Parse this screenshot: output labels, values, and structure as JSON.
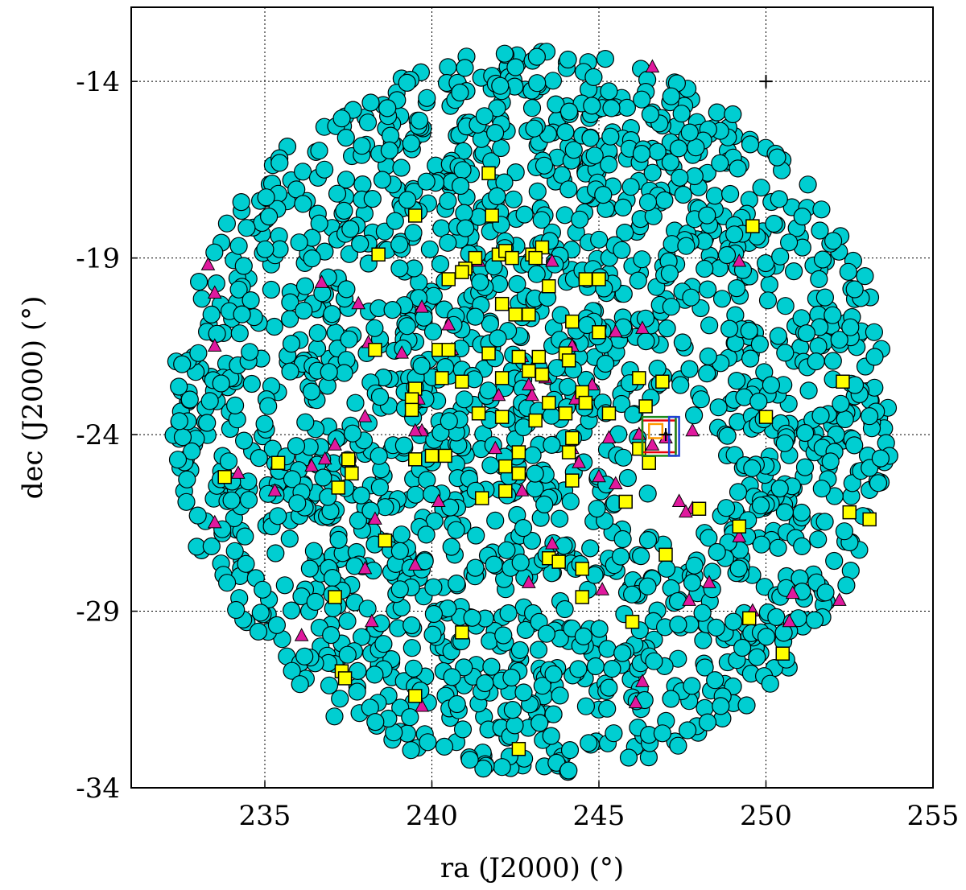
{
  "chart_data": {
    "type": "scatter",
    "xlabel": "ra (J2000) (°)",
    "ylabel": "dec (J2000) (°)",
    "xlim": [
      231,
      255
    ],
    "ylim": [
      -34,
      -11.9
    ],
    "xticks": [
      235,
      240,
      245,
      250,
      255
    ],
    "yticks": [
      -34,
      -29,
      -24,
      -19,
      -14
    ],
    "xtick_labels": [
      "235",
      "240",
      "245",
      "250",
      "255"
    ],
    "ytick_labels": [
      "-34",
      "-29",
      "-24",
      "-19",
      "-14"
    ],
    "grid": true,
    "colors": {
      "circles": "#00ced1",
      "squares": "#ffff00",
      "triangles": "#e0199e",
      "box_red": "#e8000b",
      "box_green": "#1a8a1a",
      "box_blue": "#1f3fd6",
      "box_orange": "#ff9900"
    },
    "field_circle": {
      "center_ra": 243,
      "center_dec": -23.4,
      "radius_ra": 10.8,
      "radius_dec": 10.3
    },
    "series": [
      {
        "marker": "circle",
        "count": 1900
      },
      {
        "marker": "square",
        "values": [
          [
            241.7,
            -16.6
          ],
          [
            241.8,
            -17.8
          ],
          [
            239.5,
            -17.8
          ],
          [
            249.6,
            -18.1
          ],
          [
            242.0,
            -18.9
          ],
          [
            242.2,
            -18.8
          ],
          [
            242.4,
            -19.0
          ],
          [
            241.3,
            -19.0
          ],
          [
            241.0,
            -19.3
          ],
          [
            240.9,
            -19.4
          ],
          [
            240.5,
            -19.6
          ],
          [
            243.0,
            -18.9
          ],
          [
            243.3,
            -18.7
          ],
          [
            243.1,
            -19.0
          ],
          [
            243.5,
            -19.8
          ],
          [
            245.0,
            -19.6
          ],
          [
            244.6,
            -19.6
          ],
          [
            238.4,
            -18.9
          ],
          [
            242.1,
            -20.3
          ],
          [
            242.5,
            -20.6
          ],
          [
            242.9,
            -20.6
          ],
          [
            244.2,
            -20.8
          ],
          [
            245.0,
            -21.1
          ],
          [
            238.3,
            -21.6
          ],
          [
            240.2,
            -21.6
          ],
          [
            240.5,
            -21.6
          ],
          [
            241.7,
            -21.7
          ],
          [
            242.6,
            -21.8
          ],
          [
            243.2,
            -21.8
          ],
          [
            244.0,
            -21.7
          ],
          [
            244.1,
            -21.9
          ],
          [
            242.9,
            -22.2
          ],
          [
            243.3,
            -22.3
          ],
          [
            242.1,
            -22.4
          ],
          [
            240.3,
            -22.4
          ],
          [
            240.9,
            -22.5
          ],
          [
            239.5,
            -22.7
          ],
          [
            239.4,
            -23.0
          ],
          [
            244.5,
            -22.8
          ],
          [
            244.6,
            -23.1
          ],
          [
            243.5,
            -23.1
          ],
          [
            246.2,
            -22.4
          ],
          [
            246.9,
            -22.5
          ],
          [
            246.4,
            -23.2
          ],
          [
            250.0,
            -23.5
          ],
          [
            252.3,
            -22.5
          ],
          [
            239.4,
            -23.3
          ],
          [
            241.4,
            -23.4
          ],
          [
            242.1,
            -23.5
          ],
          [
            243.1,
            -23.6
          ],
          [
            244.0,
            -23.4
          ],
          [
            245.3,
            -23.4
          ],
          [
            244.2,
            -24.1
          ],
          [
            244.1,
            -24.5
          ],
          [
            242.6,
            -24.5
          ],
          [
            240.0,
            -24.6
          ],
          [
            240.4,
            -24.6
          ],
          [
            239.5,
            -24.7
          ],
          [
            237.5,
            -24.7
          ],
          [
            235.4,
            -24.8
          ],
          [
            237.6,
            -25.1
          ],
          [
            237.2,
            -25.5
          ],
          [
            233.8,
            -25.2
          ],
          [
            242.2,
            -24.9
          ],
          [
            242.6,
            -25.1
          ],
          [
            244.2,
            -25.3
          ],
          [
            246.2,
            -24.4
          ],
          [
            246.5,
            -24.8
          ],
          [
            242.2,
            -25.6
          ],
          [
            241.5,
            -25.8
          ],
          [
            245.8,
            -25.9
          ],
          [
            248.0,
            -26.1
          ],
          [
            252.5,
            -26.2
          ],
          [
            253.1,
            -26.4
          ],
          [
            249.2,
            -26.6
          ],
          [
            238.6,
            -27.0
          ],
          [
            243.5,
            -27.5
          ],
          [
            243.8,
            -27.6
          ],
          [
            244.5,
            -27.8
          ],
          [
            247.0,
            -27.4
          ],
          [
            237.1,
            -28.6
          ],
          [
            244.5,
            -28.6
          ],
          [
            246.0,
            -29.3
          ],
          [
            249.5,
            -29.2
          ],
          [
            240.9,
            -29.6
          ],
          [
            250.5,
            -30.2
          ],
          [
            237.3,
            -30.7
          ],
          [
            237.4,
            -30.9
          ],
          [
            239.5,
            -31.4
          ],
          [
            242.6,
            -32.9
          ]
        ]
      },
      {
        "marker": "triangle",
        "values": [
          [
            246.6,
            -13.6
          ],
          [
            233.3,
            -19.2
          ],
          [
            249.2,
            -19.1
          ],
          [
            243.6,
            -19.1
          ],
          [
            241.4,
            -19.1
          ],
          [
            233.5,
            -20.0
          ],
          [
            236.7,
            -19.7
          ],
          [
            237.8,
            -20.3
          ],
          [
            239.7,
            -20.4
          ],
          [
            240.5,
            -20.9
          ],
          [
            245.5,
            -21.1
          ],
          [
            246.3,
            -21.0
          ],
          [
            233.5,
            -21.5
          ],
          [
            238.1,
            -21.4
          ],
          [
            239.1,
            -21.7
          ],
          [
            240.6,
            -21.6
          ],
          [
            242.7,
            -21.8
          ],
          [
            244.2,
            -21.5
          ],
          [
            243.4,
            -22.4
          ],
          [
            243.0,
            -22.9
          ],
          [
            244.8,
            -22.6
          ],
          [
            242.0,
            -22.9
          ],
          [
            244.3,
            -23.0
          ],
          [
            239.6,
            -23.0
          ],
          [
            238.0,
            -23.5
          ],
          [
            239.7,
            -23.9
          ],
          [
            239.5,
            -23.9
          ],
          [
            236.4,
            -24.9
          ],
          [
            236.8,
            -24.7
          ],
          [
            237.1,
            -24.3
          ],
          [
            234.2,
            -25.1
          ],
          [
            235.3,
            -25.6
          ],
          [
            240.2,
            -25.9
          ],
          [
            241.9,
            -24.4
          ],
          [
            242.7,
            -25.6
          ],
          [
            244.2,
            -24.4
          ],
          [
            244.4,
            -24.8
          ],
          [
            245.0,
            -25.2
          ],
          [
            245.5,
            -25.4
          ],
          [
            245.3,
            -24.1
          ],
          [
            246.2,
            -24.0
          ],
          [
            247.0,
            -24.1
          ],
          [
            246.6,
            -24.3
          ],
          [
            247.4,
            -25.9
          ],
          [
            247.8,
            -26.1
          ],
          [
            247.6,
            -26.2
          ],
          [
            248.3,
            -28.2
          ],
          [
            249.2,
            -26.9
          ],
          [
            233.5,
            -26.5
          ],
          [
            238.3,
            -26.4
          ],
          [
            238.0,
            -27.8
          ],
          [
            243.6,
            -27.1
          ],
          [
            239.5,
            -27.7
          ],
          [
            242.9,
            -28.2
          ],
          [
            245.1,
            -28.4
          ],
          [
            236.1,
            -29.7
          ],
          [
            238.2,
            -29.3
          ],
          [
            247.7,
            -28.7
          ],
          [
            250.8,
            -28.5
          ],
          [
            252.2,
            -28.7
          ],
          [
            250.7,
            -29.3
          ],
          [
            246.1,
            -31.6
          ],
          [
            246.3,
            -31.0
          ],
          [
            239.7,
            -31.7
          ],
          [
            247.8,
            -23.9
          ],
          [
            249.6,
            -29.0
          ],
          [
            242.9,
            -22.6
          ]
        ]
      }
    ],
    "annotations": [
      {
        "shape": "box",
        "color": "red",
        "ra": [
          246.3,
          247.3
        ],
        "dec": [
          -23.6,
          -24.5
        ]
      },
      {
        "shape": "box",
        "color": "green",
        "ra": [
          246.3,
          247.3
        ],
        "dec": [
          -23.5,
          -24.6
        ]
      },
      {
        "shape": "box",
        "color": "blue",
        "ra": [
          247.1,
          247.4
        ],
        "dec": [
          -23.5,
          -24.6
        ]
      },
      {
        "shape": "box",
        "color": "orange",
        "ra": [
          246.5,
          246.9
        ],
        "dec": [
          -23.7,
          -24.1
        ]
      },
      {
        "shape": "cross",
        "ra": [
          247.0,
          250.0
        ],
        "dec": [
          -24.0,
          -14.0
        ]
      }
    ]
  }
}
